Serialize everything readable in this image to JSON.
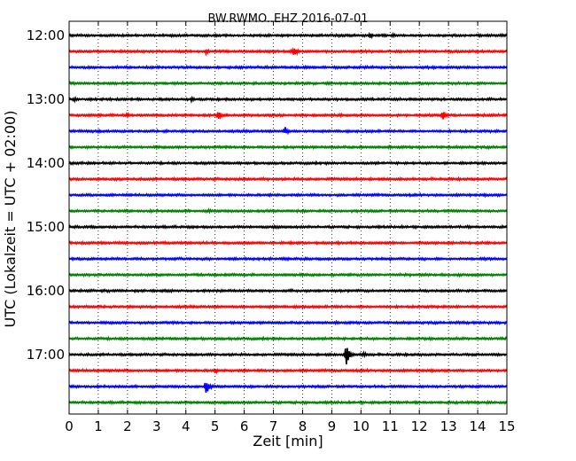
{
  "chart_data": {
    "type": "line",
    "title": "BW.RWMO..EHZ 2016-07-01",
    "xlabel": "Zeit  [min]",
    "ylabel": "UTC (Lokalzeit = UTC + 02:00)",
    "xlim": [
      0,
      15
    ],
    "x_ticks": [
      "0",
      "1",
      "2",
      "3",
      "4",
      "5",
      "6",
      "7",
      "8",
      "9",
      "10",
      "11",
      "12",
      "13",
      "14",
      "15"
    ],
    "y_ticks": [
      "12:00",
      "13:00",
      "14:00",
      "15:00",
      "16:00",
      "17:00"
    ],
    "y_tick_rows": [
      0,
      4,
      8,
      12,
      16,
      20
    ],
    "trace_interval_min": 15,
    "grid": "vertical dotted at each minute",
    "colors": [
      "#000000",
      "#ff0000",
      "#0000ff",
      "#008000"
    ],
    "rows": [
      {
        "start": "12:00",
        "events": [
          {
            "t": 10.3,
            "amp": 0.35
          },
          {
            "t": 11.1,
            "amp": 0.25
          },
          {
            "t": 14.8,
            "amp": 0.2
          }
        ]
      },
      {
        "start": "12:15",
        "events": [
          {
            "t": 4.7,
            "amp": 0.35
          },
          {
            "t": 7.7,
            "amp": 0.6
          }
        ]
      },
      {
        "start": "12:30",
        "events": []
      },
      {
        "start": "12:45",
        "events": []
      },
      {
        "start": "13:00",
        "events": [
          {
            "t": 0.2,
            "amp": 0.3
          },
          {
            "t": 4.2,
            "amp": 0.3
          }
        ]
      },
      {
        "start": "13:15",
        "events": [
          {
            "t": 2.0,
            "amp": 0.3
          },
          {
            "t": 5.1,
            "amp": 0.55
          },
          {
            "t": 12.8,
            "amp": 0.6
          },
          {
            "t": 9.3,
            "amp": 0.2
          }
        ]
      },
      {
        "start": "13:30",
        "events": [
          {
            "t": 3.3,
            "amp": 0.2
          },
          {
            "t": 7.4,
            "amp": 0.5
          }
        ]
      },
      {
        "start": "13:45",
        "events": []
      },
      {
        "start": "14:00",
        "events": []
      },
      {
        "start": "14:15",
        "events": []
      },
      {
        "start": "14:30",
        "events": [
          {
            "t": 6.9,
            "amp": 0.2
          }
        ]
      },
      {
        "start": "14:45",
        "events": [
          {
            "t": 4.8,
            "amp": 0.25
          }
        ]
      },
      {
        "start": "15:00",
        "events": [
          {
            "t": 7.0,
            "amp": 0.2
          }
        ]
      },
      {
        "start": "15:15",
        "events": []
      },
      {
        "start": "15:30",
        "events": [
          {
            "t": 11.0,
            "amp": 0.2
          }
        ]
      },
      {
        "start": "15:45",
        "events": [
          {
            "t": 14.0,
            "amp": 0.15
          }
        ]
      },
      {
        "start": "16:00",
        "events": []
      },
      {
        "start": "16:15",
        "events": []
      },
      {
        "start": "16:30",
        "events": []
      },
      {
        "start": "16:45",
        "events": []
      },
      {
        "start": "17:00",
        "events": [
          {
            "t": 9.5,
            "amp": 1.2
          },
          {
            "t": 10.1,
            "amp": 0.35
          },
          {
            "t": 2.1,
            "amp": 0.15
          }
        ]
      },
      {
        "start": "17:15",
        "events": [
          {
            "t": 5.0,
            "amp": 0.35
          }
        ]
      },
      {
        "start": "17:30",
        "events": [
          {
            "t": 4.7,
            "amp": 0.9
          }
        ]
      },
      {
        "start": "17:45",
        "events": [
          {
            "t": 11.3,
            "amp": 0.15
          }
        ]
      }
    ]
  }
}
